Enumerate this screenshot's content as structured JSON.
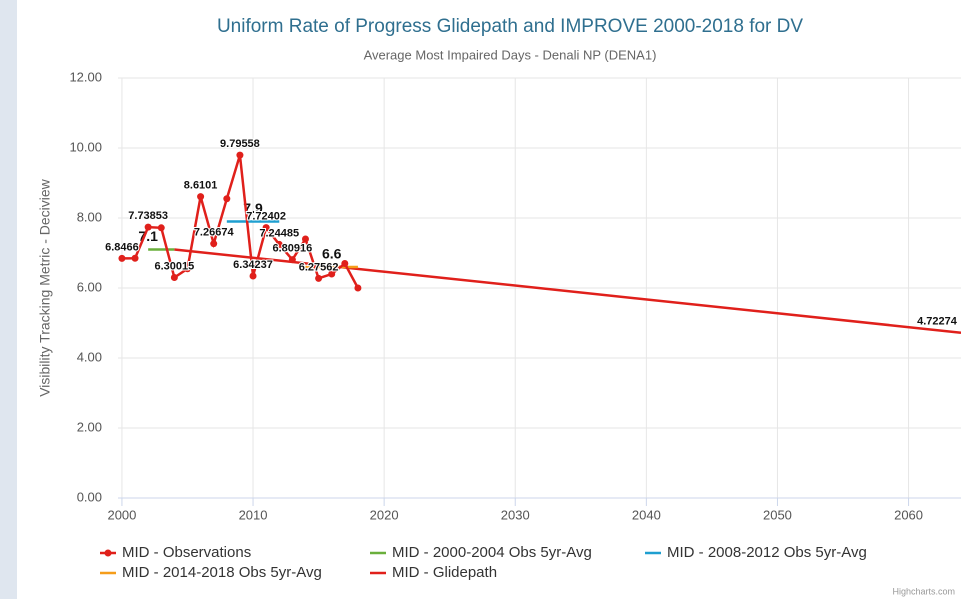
{
  "chart_data": {
    "type": "line",
    "title": "Uniform Rate of Progress Glidepath and IMPROVE 2000-2018 for DV",
    "subtitle": "Average Most Impaired Days - Denali NP (DENA1)",
    "y_label": "Visibility Tracking Metric - Deciview",
    "credit": "Highcharts.com",
    "xlim": [
      1999.7,
      2064
    ],
    "xticks": [
      2000,
      2010,
      2020,
      2030,
      2040,
      2050,
      2060
    ],
    "ylim": [
      0,
      12
    ],
    "yticks": [
      {
        "value": 0,
        "label": "0.00"
      },
      {
        "value": 2,
        "label": "2.00"
      },
      {
        "value": 4,
        "label": "4.00"
      },
      {
        "value": 6,
        "label": "6.00"
      },
      {
        "value": 8,
        "label": "8.00"
      },
      {
        "value": 10,
        "label": "10.00"
      },
      {
        "value": 12,
        "label": "12.00"
      }
    ],
    "grid": true,
    "series": [
      {
        "name": "MID - Observations",
        "color": "#e0201b",
        "markers": true,
        "x": [
          2000,
          2001,
          2002,
          2003,
          2004,
          2005,
          2006,
          2007,
          2008,
          2009,
          2010,
          2011,
          2012,
          2013,
          2014,
          2015,
          2016,
          2017,
          2018
        ],
        "values": [
          6.8466,
          6.85,
          7.73853,
          7.72,
          6.30015,
          6.55,
          8.6101,
          7.26674,
          8.55,
          9.79558,
          6.34237,
          7.72402,
          7.24485,
          6.80916,
          7.4,
          6.27562,
          6.4,
          6.7,
          6.0
        ],
        "value_labels": [
          "6.8466",
          null,
          "7.73853",
          null,
          "6.30015",
          null,
          "8.6101",
          "7.26674",
          null,
          "9.79558",
          "6.34237",
          "7.72402",
          "7.24485",
          "6.80916",
          null,
          "6.27562",
          null,
          null,
          null
        ]
      },
      {
        "name": "MID - 2000-2004 Obs 5yr-Avg",
        "color": "#6aaf3c",
        "x": [
          2002,
          2004
        ],
        "values": [
          7.1,
          7.1
        ],
        "value_labels": [
          "7.1",
          null
        ]
      },
      {
        "name": "MID - 2008-2012 Obs 5yr-Avg",
        "color": "#1e9fd0",
        "x": [
          2008,
          2010,
          2012
        ],
        "values": [
          7.9,
          7.9,
          7.9
        ],
        "value_labels": [
          null,
          "7.9",
          null
        ]
      },
      {
        "name": "MID - 2014-2018 Obs 5yr-Avg",
        "color": "#f59d1a",
        "x": [
          2014,
          2016,
          2018
        ],
        "values": [
          6.6,
          6.6,
          6.6
        ],
        "value_labels": [
          null,
          "6.6",
          null
        ]
      },
      {
        "name": "MID - Glidepath",
        "color": "#e0201b",
        "x": [
          2004,
          2064
        ],
        "values": [
          7.1,
          4.72274
        ],
        "value_labels": [
          null,
          "4.72274"
        ]
      }
    ]
  }
}
